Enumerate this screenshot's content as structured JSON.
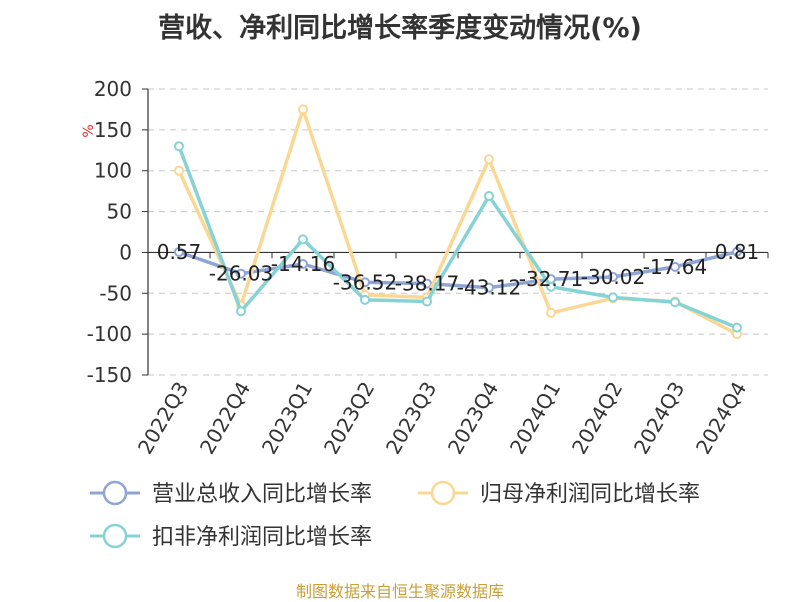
{
  "chart_data": {
    "type": "line",
    "title": "营收、净利同比增长率季度变动情况(%)",
    "ylabel": "%",
    "categories": [
      "2022Q3",
      "2022Q4",
      "2023Q1",
      "2023Q2",
      "2023Q3",
      "2023Q4",
      "2024Q1",
      "2024Q2",
      "2024Q3",
      "2024Q4"
    ],
    "ylim": [
      -150,
      200
    ],
    "yticks": [
      200,
      150,
      100,
      50,
      0,
      -50,
      -100,
      -150
    ],
    "grid": true,
    "legend_position": "bottom",
    "series": [
      {
        "name": "营业总收入同比增长率",
        "color": "#8fa5d6",
        "values": [
          0.57,
          -26.03,
          -14.16,
          -36.52,
          -38.17,
          -43.12,
          -32.71,
          -30.02,
          -17.64,
          0.81
        ],
        "labels": [
          "0.57",
          "-26.03",
          "-14.16",
          "-36.52",
          "-38.17",
          "-43.12",
          "-32.71",
          "-30.02",
          "-17.64",
          "0.81"
        ]
      },
      {
        "name": "归母净利润同比增长率",
        "color": "#fad894",
        "values": [
          100,
          -65,
          175,
          -52,
          -55,
          114,
          -74,
          -56,
          -60,
          -100
        ]
      },
      {
        "name": "扣非净利润同比增长率",
        "color": "#86d3d6",
        "values": [
          130,
          -72,
          16,
          -58,
          -60,
          69,
          -42,
          -55,
          -61,
          -92
        ]
      }
    ]
  },
  "source": {
    "text": "制图数据来自恒生聚源数据库",
    "color": "#c8a03a"
  }
}
